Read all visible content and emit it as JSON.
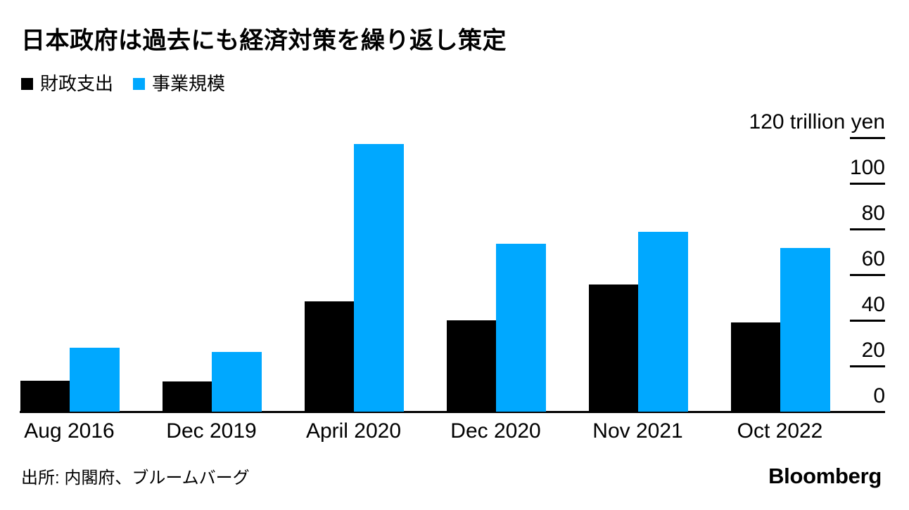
{
  "chart": {
    "title": "日本政府は過去にも経済対策を繰り返し策定",
    "source": "出所: 内閣府、ブルームバーグ",
    "logo": "Bloomberg",
    "colors": {
      "fiscal_black": "#000000",
      "scale_blue": "#00A8FF",
      "axis": "#000000",
      "background": "#ffffff"
    }
  },
  "chart_data": {
    "type": "bar",
    "title": "日本政府は過去にも経済対策を繰り返し策定",
    "categories": [
      "Aug 2016",
      "Dec 2019",
      "April 2020",
      "Dec 2020",
      "Nov 2021",
      "Oct 2022"
    ],
    "series": [
      {
        "name": "財政支出",
        "color": "#000000",
        "values": [
          13.5,
          13.2,
          48.4,
          40.0,
          55.7,
          39.0
        ]
      },
      {
        "name": "事業規模",
        "color": "#00A8FF",
        "values": [
          28.1,
          26.0,
          117.1,
          73.6,
          78.9,
          71.6
        ]
      }
    ],
    "ylabel": "",
    "xlabel": "",
    "unit_label": "trillion yen",
    "ylim": [
      0,
      120
    ],
    "yticks": [
      0,
      20,
      40,
      60,
      80,
      100,
      120
    ],
    "ytick_labels": [
      "0",
      "20",
      "40",
      "60",
      "80",
      "100",
      "120 trillion yen"
    ],
    "grid": false,
    "legend_position": "top-left",
    "axis_side": "right",
    "source": "出所: 内閣府、ブルームバーグ",
    "credit": "Bloomberg"
  }
}
